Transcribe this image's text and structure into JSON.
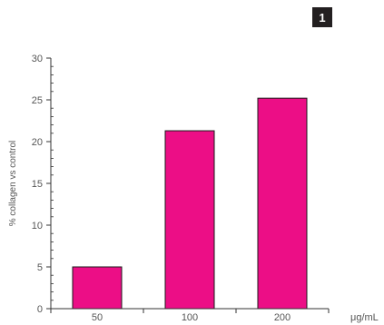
{
  "badge": "1",
  "colors": {
    "bar": "#ec0e86",
    "axis": "#333333",
    "text": "#555555",
    "badge_bg": "#231f20"
  },
  "chart_data": {
    "type": "bar",
    "categories": [
      "50",
      "100",
      "200"
    ],
    "values": [
      5,
      21.3,
      25.2
    ],
    "ylabel": "% collagen vs control",
    "xunit": "μg/mL",
    "ylim": [
      0,
      30
    ],
    "yticks": [
      0,
      5,
      10,
      15,
      20,
      25,
      30
    ],
    "grid": false,
    "legend": "none"
  }
}
